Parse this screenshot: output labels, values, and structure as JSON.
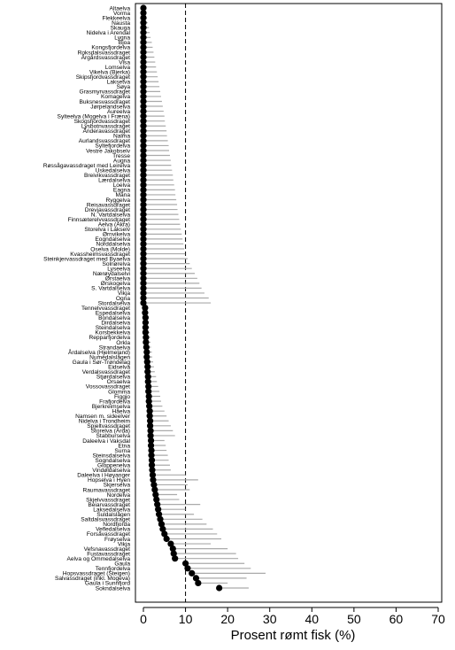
{
  "chart_data": {
    "type": "scatter",
    "orientation": "horizontal",
    "xlabel": "Prosent rømt fisk (%)",
    "xlim": [
      0,
      70
    ],
    "xticks": [
      0,
      10,
      20,
      30,
      40,
      50,
      60,
      70
    ],
    "reference_line_x": 10,
    "grid": false,
    "error_bars": true,
    "colors": {
      "point": "#000000",
      "error_bar": "#aaaaaa",
      "reference_line": "#000000"
    },
    "rivers": [
      {
        "name": "Altaelva",
        "value": 0,
        "upper": 0.3
      },
      {
        "name": "Vorma",
        "value": 0,
        "upper": 0.5
      },
      {
        "name": "Flekkeelva",
        "value": 0,
        "upper": 0.8
      },
      {
        "name": "Nausta",
        "value": 0,
        "upper": 1.0
      },
      {
        "name": "Skauga",
        "value": 0,
        "upper": 1.3
      },
      {
        "name": "Nidelva i Arendal",
        "value": 0,
        "upper": 1.5
      },
      {
        "name": "Lygna",
        "value": 0,
        "upper": 1.7
      },
      {
        "name": "Bjoa",
        "value": 0,
        "upper": 2.0
      },
      {
        "name": "Kongsfjordelva",
        "value": 0,
        "upper": 2.2
      },
      {
        "name": "Roksdalsvassdraget",
        "value": 0,
        "upper": 2.4
      },
      {
        "name": "Årgårdsvassdraget",
        "value": 0,
        "upper": 2.6
      },
      {
        "name": "Visa",
        "value": 0,
        "upper": 2.8
      },
      {
        "name": "Lomselva",
        "value": 0,
        "upper": 3.0
      },
      {
        "name": "Vikelva (Bjerka)",
        "value": 0,
        "upper": 3.2
      },
      {
        "name": "Skipsfjordvassdraget",
        "value": 0,
        "upper": 3.4
      },
      {
        "name": "Laksetva",
        "value": 0,
        "upper": 3.6
      },
      {
        "name": "Søya",
        "value": 0,
        "upper": 3.8
      },
      {
        "name": "Grasmyrvassdraget",
        "value": 0,
        "upper": 4.0
      },
      {
        "name": "Komagelva",
        "value": 0,
        "upper": 4.2
      },
      {
        "name": "Buksnesvassdraget",
        "value": 0,
        "upper": 4.4
      },
      {
        "name": "Jørpelandselva",
        "value": 0,
        "upper": 4.6
      },
      {
        "name": "Aureelva",
        "value": 0,
        "upper": 4.8
      },
      {
        "name": "Sylteelva (Mogelva i Fræna)",
        "value": 0,
        "upper": 5.0
      },
      {
        "name": "Skogsfjordvassdraget",
        "value": 0,
        "upper": 5.1
      },
      {
        "name": "Lysbotnvassdraget",
        "value": 0,
        "upper": 5.3
      },
      {
        "name": "Ånderavassdraget",
        "value": 0,
        "upper": 5.5
      },
      {
        "name": "Nalma",
        "value": 0,
        "upper": 5.6
      },
      {
        "name": "Aurlandsvassdraget",
        "value": 0,
        "upper": 5.8
      },
      {
        "name": "Syltefjordelva",
        "value": 0,
        "upper": 6.0
      },
      {
        "name": "Vestre Jakobselv",
        "value": 0,
        "upper": 6.1
      },
      {
        "name": "Tresse",
        "value": 0,
        "upper": 6.3
      },
      {
        "name": "Augna",
        "value": 0,
        "upper": 6.5
      },
      {
        "name": "Røssågavassdraget med Leirelva",
        "value": 0,
        "upper": 6.6
      },
      {
        "name": "Uskedalselva",
        "value": 0,
        "upper": 6.8
      },
      {
        "name": "Breivikvassdraget",
        "value": 0,
        "upper": 7.0
      },
      {
        "name": "Lærdalselva",
        "value": 0,
        "upper": 7.1
      },
      {
        "name": "Loelva",
        "value": 0,
        "upper": 7.3
      },
      {
        "name": "Eagna",
        "value": 0,
        "upper": 7.5
      },
      {
        "name": "Mana",
        "value": 0,
        "upper": 7.6
      },
      {
        "name": "Ryggelva",
        "value": 0,
        "upper": 7.8
      },
      {
        "name": "Reisavassdraget",
        "value": 0,
        "upper": 8.0
      },
      {
        "name": "Drevjavassdraget",
        "value": 0,
        "upper": 8.1
      },
      {
        "name": "N. Vartdalselva",
        "value": 0,
        "upper": 8.3
      },
      {
        "name": "Finnsæterelvvassdraget",
        "value": 0,
        "upper": 8.5
      },
      {
        "name": "Aelva (Åkra)",
        "value": 0,
        "upper": 8.7
      },
      {
        "name": "Storelva i Lakselv",
        "value": 0,
        "upper": 8.9
      },
      {
        "name": "Ørnvikelva",
        "value": 0,
        "upper": 9.1
      },
      {
        "name": "Eogndalselva",
        "value": 0,
        "upper": 9.3
      },
      {
        "name": "Norddalselva",
        "value": 0,
        "upper": 9.5
      },
      {
        "name": "Oselva (Molde)",
        "value": 0,
        "upper": 9.7
      },
      {
        "name": "Kvassheimsvassdraget",
        "value": 0,
        "upper": 9.9
      },
      {
        "name": "Steinkjervassdraget med Byaelva",
        "value": 0,
        "upper": 10.5
      },
      {
        "name": "Solnørelva",
        "value": 0,
        "upper": 11.0
      },
      {
        "name": "Lyseelva",
        "value": 0,
        "upper": 11.5
      },
      {
        "name": "Nærøydalselvi",
        "value": 0,
        "upper": 12.2
      },
      {
        "name": "Ørstaelva",
        "value": 0,
        "upper": 12.8
      },
      {
        "name": "Ørskogelva",
        "value": 0,
        "upper": 13.3
      },
      {
        "name": "S. Vartdalselva",
        "value": 0,
        "upper": 13.8
      },
      {
        "name": "Vikja",
        "value": 0,
        "upper": 14.5
      },
      {
        "name": "Ogna",
        "value": 0,
        "upper": 15.5
      },
      {
        "name": "Stordalselva",
        "value": 0,
        "upper": 16.0
      },
      {
        "name": "Tennelvvassdraget",
        "value": 0.4,
        "upper": 1.0
      },
      {
        "name": "Espedalselva",
        "value": 0.4,
        "upper": 1.1
      },
      {
        "name": "Bondalselva",
        "value": 0.5,
        "upper": 1.2
      },
      {
        "name": "Dirdalselva",
        "value": 0.5,
        "upper": 1.3
      },
      {
        "name": "Steindalselva",
        "value": 0.5,
        "upper": 1.4
      },
      {
        "name": "Korsbekkelva",
        "value": 0.5,
        "upper": 1.5
      },
      {
        "name": "Repparfjordelva",
        "value": 0.6,
        "upper": 1.6
      },
      {
        "name": "Orkla",
        "value": 0.6,
        "upper": 1.7
      },
      {
        "name": "Strandaelva",
        "value": 0.7,
        "upper": 1.8
      },
      {
        "name": "Årdalselva (Hjelmeland)",
        "value": 0.8,
        "upper": 2.0
      },
      {
        "name": "Numedalslågen",
        "value": 0.8,
        "upper": 2.1
      },
      {
        "name": "Gaula i Sør-Trøndelag",
        "value": 0.9,
        "upper": 2.3
      },
      {
        "name": "Eidselva",
        "value": 1.0,
        "upper": 2.5
      },
      {
        "name": "Verdalsvassdraget",
        "value": 1.0,
        "upper": 2.7
      },
      {
        "name": "Stjørdalselva",
        "value": 1.1,
        "upper": 3.0
      },
      {
        "name": "Orsaelva",
        "value": 1.1,
        "upper": 3.2
      },
      {
        "name": "Vossovassdraget",
        "value": 1.2,
        "upper": 3.5
      },
      {
        "name": "Glomma",
        "value": 1.2,
        "upper": 3.8
      },
      {
        "name": "Figgjo",
        "value": 1.3,
        "upper": 4.0
      },
      {
        "name": "Frafjordelva",
        "value": 1.3,
        "upper": 4.2
      },
      {
        "name": "Bjerkreimselva",
        "value": 1.4,
        "upper": 4.5
      },
      {
        "name": "Håelva",
        "value": 1.5,
        "upper": 5.0
      },
      {
        "name": "Namsen m. sideelver",
        "value": 1.5,
        "upper": 5.5
      },
      {
        "name": "Nidelva i Trondheim",
        "value": 1.6,
        "upper": 6.0
      },
      {
        "name": "Spjeltvassdraget",
        "value": 1.6,
        "upper": 6.5
      },
      {
        "name": "Storelva (Årda)",
        "value": 1.7,
        "upper": 7.0
      },
      {
        "name": "Stabburselva",
        "value": 1.7,
        "upper": 7.5
      },
      {
        "name": "Daleelva i Vaksdal",
        "value": 1.8,
        "upper": 5.0
      },
      {
        "name": "Etna",
        "value": 1.8,
        "upper": 5.3
      },
      {
        "name": "Surna",
        "value": 1.9,
        "upper": 5.5
      },
      {
        "name": "Steinsdalselva",
        "value": 1.9,
        "upper": 5.8
      },
      {
        "name": "Sogndalselva",
        "value": 2.0,
        "upper": 6.0
      },
      {
        "name": "Gloppenelva",
        "value": 2.0,
        "upper": 6.3
      },
      {
        "name": "Vindøldalselva",
        "value": 2.1,
        "upper": 6.5
      },
      {
        "name": "Daleelva i Høyanger",
        "value": 2.2,
        "upper": 10.0
      },
      {
        "name": "Hopselva i Hyen",
        "value": 2.3,
        "upper": 13.0
      },
      {
        "name": "Skjerselva",
        "value": 2.5,
        "upper": 10.5
      },
      {
        "name": "Raumavassdraget",
        "value": 2.7,
        "upper": 11.0
      },
      {
        "name": "Nordelva",
        "value": 2.9,
        "upper": 8.0
      },
      {
        "name": "Skjelvvassdraget",
        "value": 3.1,
        "upper": 8.5
      },
      {
        "name": "Beiarvassdraget",
        "value": 3.3,
        "upper": 13.5
      },
      {
        "name": "Laksedalselva",
        "value": 3.5,
        "upper": 10.0
      },
      {
        "name": "Suldalslågen",
        "value": 3.7,
        "upper": 12.0
      },
      {
        "name": "Saltdalsvassdraget",
        "value": 4.0,
        "upper": 14.0
      },
      {
        "name": "Nordfjorda",
        "value": 4.3,
        "upper": 15.0
      },
      {
        "name": "Vefledalselva",
        "value": 4.6,
        "upper": 16.5
      },
      {
        "name": "Forsåvassdraget",
        "value": 5.0,
        "upper": 17.5
      },
      {
        "name": "Frøyselva",
        "value": 5.5,
        "upper": 18.5
      },
      {
        "name": "Vikja",
        "value": 6.5,
        "upper": 16.0
      },
      {
        "name": "Vefsnavassdraget",
        "value": 7.0,
        "upper": 20.0
      },
      {
        "name": "Fustavassdraget",
        "value": 7.2,
        "upper": 22.0
      },
      {
        "name": "Aelva og Ommedalselva",
        "value": 7.5,
        "upper": 22.5
      },
      {
        "name": "Gaula",
        "value": 10.0,
        "upper": 24.0
      },
      {
        "name": "Tennfjordelva",
        "value": 10.5,
        "upper": 25.5
      },
      {
        "name": "Hopsvassdraget (Steigen)",
        "value": 11.5,
        "upper": 29.0
      },
      {
        "name": "Salvassdraget (inkl. Mogeva)",
        "value": 12.5,
        "upper": 24.5
      },
      {
        "name": "Gaula i Sunnfjord",
        "value": 13.0,
        "upper": 20.0
      },
      {
        "name": "Sokndalselva",
        "value": 18.0,
        "upper": 25.0
      }
    ]
  }
}
